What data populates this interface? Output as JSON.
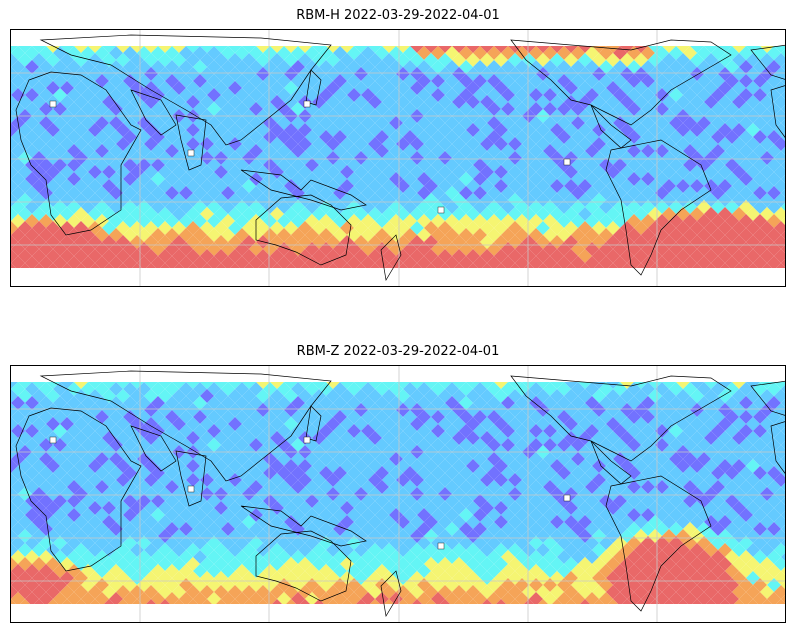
{
  "panels": [
    {
      "title": "RBM-H 2022-03-29-2022-04-01",
      "variant": "H"
    },
    {
      "title": "RBM-Z 2022-03-29-2022-04-01",
      "variant": "Z"
    }
  ],
  "colors": {
    "low": "#6b6bff",
    "mid_low": "#5cc8ff",
    "cyan": "#5cf5f5",
    "yellow": "#f5f56b",
    "orange": "#f5a050",
    "high": "#e86060",
    "coast": "#000000",
    "grid": "#c8c8c8"
  }
}
